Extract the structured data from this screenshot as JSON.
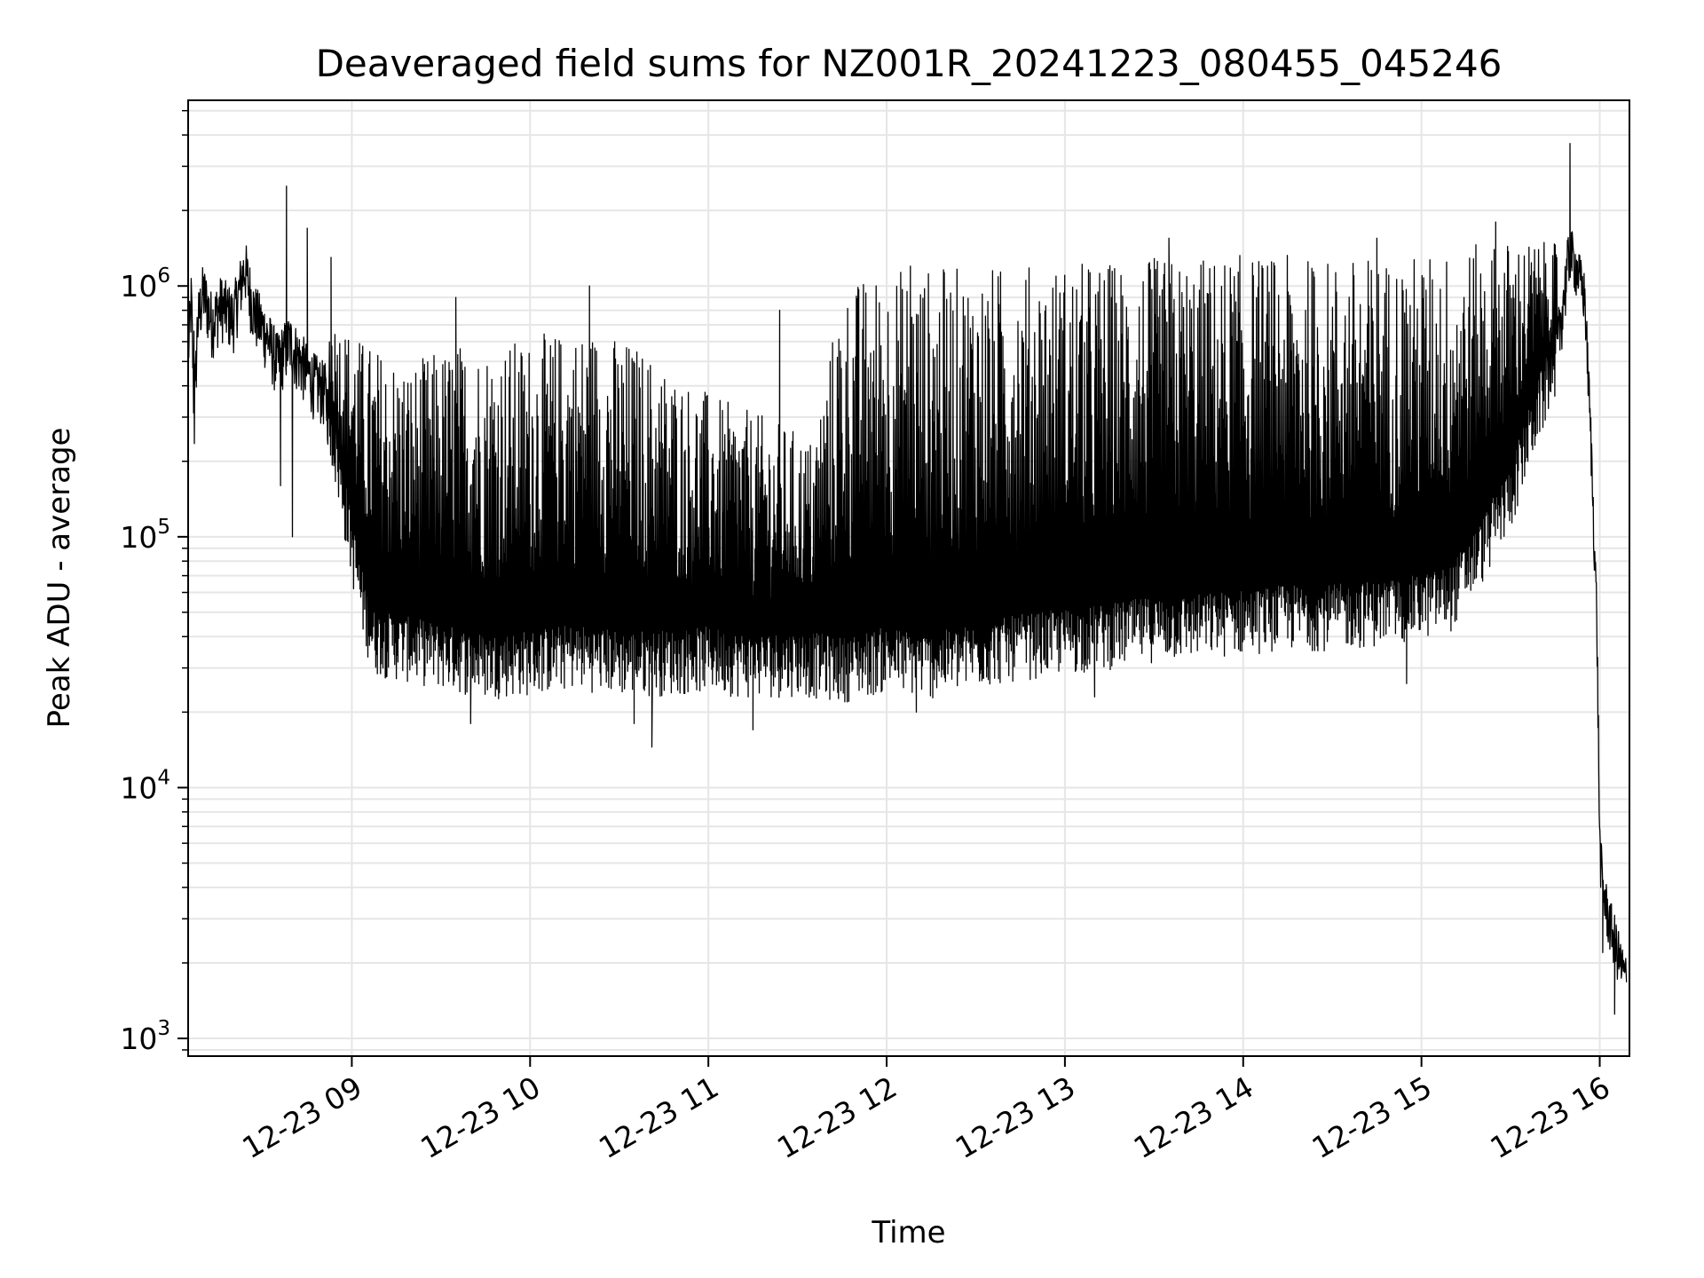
{
  "chart_data": {
    "type": "line",
    "title": "Deaveraged field sums for NZ001R_20241223_080455_045246",
    "xlabel": "Time",
    "ylabel": "Peak ADU - average",
    "x_scale": "time",
    "y_scale": "log",
    "xlim": [
      "2024-12-23 08:04:55",
      "2024-12-23 16:10:00"
    ],
    "ylim": [
      850,
      5500000
    ],
    "grid": true,
    "legend": "none",
    "line_color": "#000000",
    "grid_color": "#e6e6e6",
    "x_ticks": [
      {
        "value": "2024-12-23 09:00",
        "label": "12-23 09"
      },
      {
        "value": "2024-12-23 10:00",
        "label": "12-23 10"
      },
      {
        "value": "2024-12-23 11:00",
        "label": "12-23 11"
      },
      {
        "value": "2024-12-23 12:00",
        "label": "12-23 12"
      },
      {
        "value": "2024-12-23 13:00",
        "label": "12-23 13"
      },
      {
        "value": "2024-12-23 14:00",
        "label": "12-23 14"
      },
      {
        "value": "2024-12-23 15:00",
        "label": "12-23 15"
      },
      {
        "value": "2024-12-23 16:00",
        "label": "12-23 16"
      }
    ],
    "y_ticks": [
      {
        "value": 1000,
        "base": "10",
        "exp": "3"
      },
      {
        "value": 10000,
        "base": "10",
        "exp": "4"
      },
      {
        "value": 100000,
        "base": "10",
        "exp": "5"
      },
      {
        "value": 1000000,
        "base": "10",
        "exp": "6"
      }
    ],
    "series": [
      {
        "points": [
          [
            "2024-12-23 08:05",
            550000
          ],
          [
            "2024-12-23 08:06",
            900000
          ],
          [
            "2024-12-23 08:07",
            280000
          ],
          [
            "2024-12-23 08:08",
            700000
          ],
          [
            "2024-12-23 08:10",
            950000
          ],
          [
            "2024-12-23 08:13",
            720000
          ],
          [
            "2024-12-23 08:16",
            850000
          ],
          [
            "2024-12-23 08:20",
            750000
          ],
          [
            "2024-12-23 08:24",
            1200000
          ],
          [
            "2024-12-23 08:27",
            800000
          ],
          [
            "2024-12-23 08:31",
            650000
          ],
          [
            "2024-12-23 08:35",
            500000
          ],
          [
            "2024-12-23 08:39",
            600000
          ],
          [
            "2024-12-23 08:43",
            500000
          ],
          [
            "2024-12-23 08:47",
            420000
          ],
          [
            "2024-12-23 08:51",
            380000
          ],
          [
            "2024-12-23 08:55",
            200000
          ],
          [
            "2024-12-23 08:59",
            110000
          ],
          [
            "2024-12-23 09:03",
            60000
          ],
          [
            "2024-12-23 09:07",
            40000
          ],
          [
            "2024-12-23 09:15",
            38000
          ],
          [
            "2024-12-23 09:30",
            35000
          ],
          [
            "2024-12-23 09:45",
            32000
          ],
          [
            "2024-12-23 10:00",
            33000
          ],
          [
            "2024-12-23 10:15",
            35000
          ],
          [
            "2024-12-23 10:30",
            33000
          ],
          [
            "2024-12-23 10:45",
            33000
          ],
          [
            "2024-12-23 11:00",
            34000
          ],
          [
            "2024-12-23 11:15",
            32000
          ],
          [
            "2024-12-23 11:30",
            33000
          ],
          [
            "2024-12-23 11:45",
            31000
          ],
          [
            "2024-12-23 12:00",
            34000
          ],
          [
            "2024-12-23 12:15",
            32000
          ],
          [
            "2024-12-23 12:30",
            35000
          ],
          [
            "2024-12-23 12:45",
            38000
          ],
          [
            "2024-12-23 13:00",
            40000
          ],
          [
            "2024-12-23 13:15",
            42000
          ],
          [
            "2024-12-23 13:30",
            45000
          ],
          [
            "2024-12-23 13:45",
            46000
          ],
          [
            "2024-12-23 14:00",
            48000
          ],
          [
            "2024-12-23 14:15",
            50000
          ],
          [
            "2024-12-23 14:30",
            50000
          ],
          [
            "2024-12-23 14:45",
            52000
          ],
          [
            "2024-12-23 15:00",
            55000
          ],
          [
            "2024-12-23 15:10",
            60000
          ],
          [
            "2024-12-23 15:20",
            90000
          ],
          [
            "2024-12-23 15:30",
            150000
          ],
          [
            "2024-12-23 15:40",
            350000
          ],
          [
            "2024-12-23 15:45",
            500000
          ],
          [
            "2024-12-23 15:50",
            1400000
          ],
          [
            "2024-12-23 15:53",
            1100000
          ],
          [
            "2024-12-23 15:55",
            900000
          ],
          [
            "2024-12-23 15:57",
            250000
          ],
          [
            "2024-12-23 15:59",
            50000
          ],
          [
            "2024-12-23 16:00",
            6000
          ],
          [
            "2024-12-23 16:01",
            4000
          ],
          [
            "2024-12-23 16:03",
            3000
          ],
          [
            "2024-12-23 16:05",
            2500
          ],
          [
            "2024-12-23 16:07",
            2000
          ],
          [
            "2024-12-23 16:09",
            1700
          ]
        ],
        "upper_envelope": [
          [
            "2024-12-23 08:05",
            900000
          ],
          [
            "2024-12-23 08:20",
            1000000
          ],
          [
            "2024-12-23 08:35",
            1000000
          ],
          [
            "2024-12-23 08:50",
            800000
          ],
          [
            "2024-12-23 09:05",
            600000
          ],
          [
            "2024-12-23 09:20",
            500000
          ],
          [
            "2024-12-23 09:35",
            600000
          ],
          [
            "2024-12-23 09:50",
            600000
          ],
          [
            "2024-12-23 10:05",
            650000
          ],
          [
            "2024-12-23 10:20",
            700000
          ],
          [
            "2024-12-23 10:35",
            600000
          ],
          [
            "2024-12-23 10:50",
            450000
          ],
          [
            "2024-12-23 11:05",
            350000
          ],
          [
            "2024-12-23 11:20",
            300000
          ],
          [
            "2024-12-23 11:35",
            250000
          ],
          [
            "2024-12-23 11:45",
            1000000
          ],
          [
            "2024-12-23 12:00",
            1200000
          ],
          [
            "2024-12-23 12:30",
            1200000
          ],
          [
            "2024-12-23 13:00",
            1250000
          ],
          [
            "2024-12-23 13:30",
            1300000
          ],
          [
            "2024-12-23 14:00",
            1350000
          ],
          [
            "2024-12-23 14:30",
            1300000
          ],
          [
            "2024-12-23 15:00",
            1350000
          ],
          [
            "2024-12-23 15:30",
            1550000
          ],
          [
            "2024-12-23 15:50",
            1450000
          ]
        ],
        "spikes": [
          [
            "2024-12-23 08:38",
            2500000
          ],
          [
            "2024-12-23 08:45",
            1700000
          ],
          [
            "2024-12-23 08:53",
            1300000
          ],
          [
            "2024-12-23 09:35",
            900000
          ],
          [
            "2024-12-23 10:20",
            1000000
          ],
          [
            "2024-12-23 11:24",
            800000
          ],
          [
            "2024-12-23 12:08",
            1200000
          ],
          [
            "2024-12-23 13:35",
            1550000
          ],
          [
            "2024-12-23 14:45",
            1550000
          ],
          [
            "2024-12-23 15:25",
            1800000
          ],
          [
            "2024-12-23 15:50",
            3700000
          ]
        ],
        "dips": [
          [
            "2024-12-23 08:36",
            160000
          ],
          [
            "2024-12-23 08:40",
            100000
          ],
          [
            "2024-12-23 09:40",
            18000
          ],
          [
            "2024-12-23 10:35",
            18000
          ],
          [
            "2024-12-23 10:41",
            14500
          ],
          [
            "2024-12-23 11:15",
            17000
          ],
          [
            "2024-12-23 12:10",
            20000
          ],
          [
            "2024-12-23 13:10",
            23000
          ],
          [
            "2024-12-23 14:55",
            26000
          ],
          [
            "2024-12-23 16:01",
            2200
          ],
          [
            "2024-12-23 16:05",
            1250
          ]
        ]
      }
    ]
  }
}
